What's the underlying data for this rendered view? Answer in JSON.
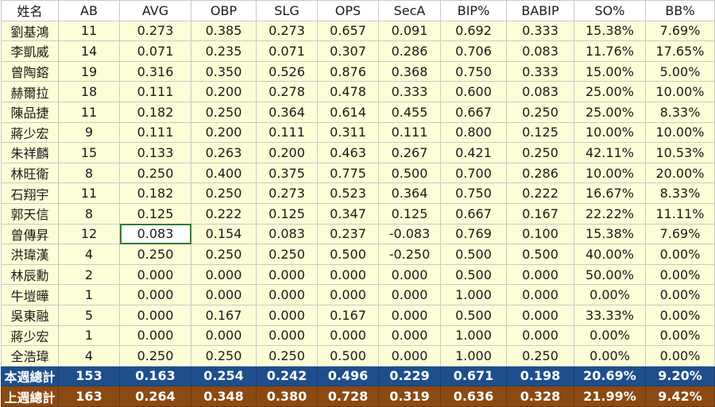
{
  "columns": [
    "姓名",
    "AB",
    "AVG",
    "OBP",
    "SLG",
    "OPS",
    "SecA",
    "BIP%",
    "BABIP",
    "SO%",
    "BB%"
  ],
  "rows": [
    [
      "劉基鴻",
      "11",
      "0.273",
      "0.385",
      "0.273",
      "0.657",
      "0.091",
      "0.692",
      "0.333",
      "15.38%",
      "7.69%"
    ],
    [
      "李凱威",
      "14",
      "0.071",
      "0.235",
      "0.071",
      "0.307",
      "0.286",
      "0.706",
      "0.083",
      "11.76%",
      "17.65%"
    ],
    [
      "曾陶鎔",
      "19",
      "0.316",
      "0.350",
      "0.526",
      "0.876",
      "0.368",
      "0.750",
      "0.333",
      "15.00%",
      "5.00%"
    ],
    [
      "赫爾拉",
      "18",
      "0.111",
      "0.200",
      "0.278",
      "0.478",
      "0.333",
      "0.600",
      "0.083",
      "25.00%",
      "10.00%"
    ],
    [
      "陳品捷",
      "11",
      "0.182",
      "0.250",
      "0.364",
      "0.614",
      "0.455",
      "0.667",
      "0.250",
      "25.00%",
      "8.33%"
    ],
    [
      "蔣少宏",
      "9",
      "0.111",
      "0.200",
      "0.111",
      "0.311",
      "0.111",
      "0.800",
      "0.125",
      "10.00%",
      "10.00%"
    ],
    [
      "朱祥麟",
      "15",
      "0.133",
      "0.263",
      "0.200",
      "0.463",
      "0.267",
      "0.421",
      "0.250",
      "42.11%",
      "10.53%"
    ],
    [
      "林旺衛",
      "8",
      "0.250",
      "0.400",
      "0.375",
      "0.775",
      "0.500",
      "0.700",
      "0.286",
      "10.00%",
      "20.00%"
    ],
    [
      "石翔宇",
      "11",
      "0.182",
      "0.250",
      "0.273",
      "0.523",
      "0.364",
      "0.750",
      "0.222",
      "16.67%",
      "8.33%"
    ],
    [
      "郭天信",
      "8",
      "0.125",
      "0.222",
      "0.125",
      "0.347",
      "0.125",
      "0.667",
      "0.167",
      "22.22%",
      "11.11%"
    ],
    [
      "曾傳昇",
      "12",
      "0.083",
      "0.154",
      "0.083",
      "0.237",
      "-0.083",
      "0.769",
      "0.100",
      "15.38%",
      "7.69%"
    ],
    [
      "洪瑋漢",
      "4",
      "0.250",
      "0.250",
      "0.250",
      "0.500",
      "-0.250",
      "0.500",
      "0.500",
      "40.00%",
      "0.00%"
    ],
    [
      "林辰勳",
      "2",
      "0.000",
      "0.000",
      "0.000",
      "0.000",
      "0.000",
      "0.500",
      "0.000",
      "50.00%",
      "0.00%"
    ],
    [
      "牛塏曄",
      "1",
      "0.000",
      "0.000",
      "0.000",
      "0.000",
      "0.000",
      "1.000",
      "0.000",
      "0.00%",
      "0.00%"
    ],
    [
      "吳東融",
      "5",
      "0.000",
      "0.167",
      "0.000",
      "0.167",
      "0.000",
      "0.500",
      "0.000",
      "33.33%",
      "0.00%"
    ],
    [
      "蔣少宏",
      "1",
      "0.000",
      "0.000",
      "0.000",
      "0.000",
      "0.000",
      "1.000",
      "0.000",
      "0.00%",
      "0.00%"
    ],
    [
      "全浩瑋",
      "4",
      "0.250",
      "0.250",
      "0.250",
      "0.500",
      "0.000",
      "1.000",
      "0.250",
      "0.00%",
      "0.00%"
    ]
  ],
  "totals": [
    [
      "本週總計",
      "153",
      "0.163",
      "0.254",
      "0.242",
      "0.496",
      "0.229",
      "0.671",
      "0.198",
      "20.69%",
      "9.20%"
    ],
    [
      "上週總計",
      "163",
      "0.264",
      "0.348",
      "0.380",
      "0.728",
      "0.319",
      "0.636",
      "0.328",
      "21.99%",
      "9.42%"
    ]
  ],
  "selected_cell": {
    "row": 10,
    "col": 2
  },
  "colors": {
    "data_row_bg": "#fdfdd8",
    "this_week_bg": "#1f4e8c",
    "last_week_bg": "#8b4a12",
    "selection_border": "#2e7d32",
    "grid": "#c9c9c9"
  }
}
